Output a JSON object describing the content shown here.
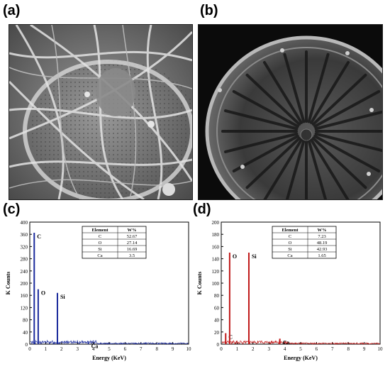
{
  "panels": {
    "a": {
      "letter": "(a)"
    },
    "b": {
      "letter": "(b)"
    },
    "c": {
      "letter": "(c)"
    },
    "d": {
      "letter": "(d)"
    }
  },
  "chart_data": [
    {
      "type": "bar",
      "panel": "(c)",
      "color": "#1a2a9c",
      "xlabel": "Energy (KeV)",
      "ylabel": "K Counts",
      "xlim": [
        0,
        10
      ],
      "ylim": [
        0,
        400
      ],
      "xticks": [
        0,
        1,
        2,
        3,
        4,
        5,
        6,
        7,
        8,
        9,
        10
      ],
      "yticks": [
        0,
        40,
        80,
        120,
        160,
        200,
        240,
        280,
        320,
        360,
        400
      ],
      "peaks": [
        {
          "label": "C",
          "x": 0.28,
          "y": 365
        },
        {
          "label": "O",
          "x": 0.53,
          "y": 180
        },
        {
          "label": "Si",
          "x": 1.74,
          "y": 168
        },
        {
          "label": "Ca",
          "x": 3.69,
          "y": 6
        }
      ],
      "table": {
        "headers": [
          "Element",
          "W%"
        ],
        "rows": [
          [
            "C",
            "52.67"
          ],
          [
            "O",
            "27.14"
          ],
          [
            "Si",
            "16.69"
          ],
          [
            "Ca",
            "3.5"
          ]
        ]
      }
    },
    {
      "type": "bar",
      "panel": "(d)",
      "color": "#c01818",
      "xlabel": "Energy (KeV)",
      "ylabel": "K Counts",
      "xlim": [
        0,
        10
      ],
      "ylim": [
        0,
        200
      ],
      "xticks": [
        0,
        1,
        2,
        3,
        4,
        5,
        6,
        7,
        8,
        9,
        10
      ],
      "yticks": [
        0,
        20,
        40,
        60,
        80,
        100,
        120,
        140,
        160,
        180,
        200
      ],
      "peaks": [
        {
          "label": "C",
          "x": 0.28,
          "y": 18
        },
        {
          "label": "O",
          "x": 0.53,
          "y": 150
        },
        {
          "label": "Si",
          "x": 1.74,
          "y": 150
        },
        {
          "label": "Ca",
          "x": 3.69,
          "y": 9
        }
      ],
      "table": {
        "headers": [
          "Element",
          "W%"
        ],
        "rows": [
          [
            "C",
            "7.23"
          ],
          [
            "O",
            "48.19"
          ],
          [
            "Si",
            "42.93"
          ],
          [
            "Ca",
            "1.65"
          ]
        ]
      }
    }
  ]
}
